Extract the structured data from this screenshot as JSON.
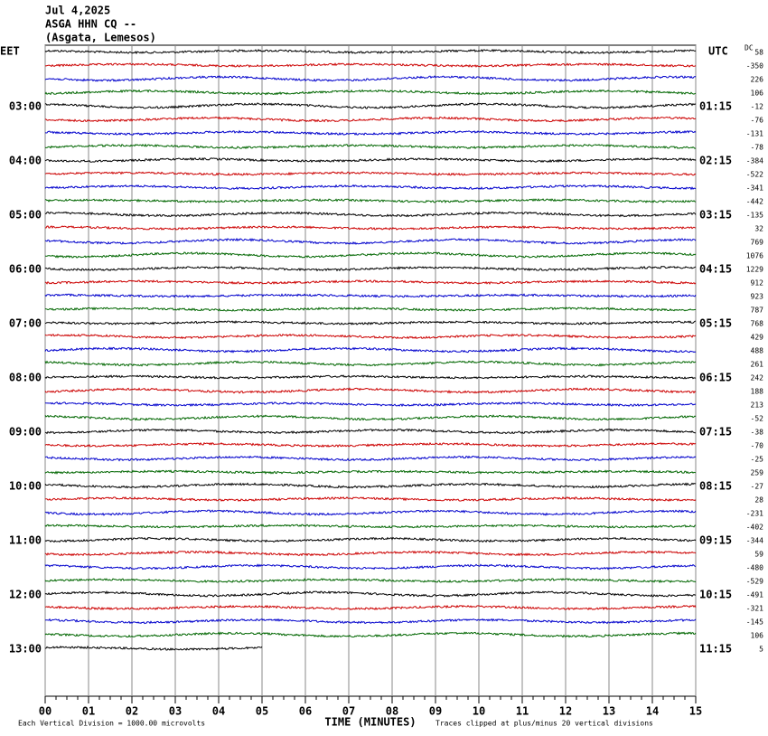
{
  "header": {
    "date": "Jul 4,2025",
    "station": "ASGA HHN CQ --",
    "location": "(Asgata, Lemesos)"
  },
  "chart_data": {
    "type": "helicorder",
    "left_axis_label": "EET",
    "right_axis_label": "UTC",
    "offset_label": "DC",
    "left_labels": [
      "03:00",
      "04:00",
      "05:00",
      "06:00",
      "07:00",
      "08:00",
      "09:00",
      "10:00",
      "11:00",
      "12:00",
      "13:00"
    ],
    "right_labels": [
      "01:15",
      "02:15",
      "03:15",
      "04:15",
      "05:15",
      "06:15",
      "07:15",
      "08:15",
      "09:15",
      "10:15",
      "11:15"
    ],
    "offsets": [
      58,
      -350,
      226,
      106,
      -12,
      -76,
      -131,
      -78,
      -384,
      -522,
      -341,
      -442,
      -135,
      32,
      769,
      1076,
      1229,
      912,
      923,
      787,
      768,
      429,
      488,
      261,
      242,
      188,
      213,
      -52,
      -38,
      -70,
      -25,
      259,
      -27,
      28,
      -231,
      -402,
      -344,
      59,
      -480,
      -529,
      -491,
      -321,
      -145,
      106,
      5
    ],
    "colors": [
      "#000000",
      "#cc0000",
      "#0000cc",
      "#006600"
    ],
    "xlabel": "TIME (MINUTES)",
    "xlim": [
      0,
      15
    ],
    "xticks": [
      {
        "value": 0,
        "label": "00"
      },
      {
        "value": 1,
        "label": "01"
      },
      {
        "value": 2,
        "label": "02"
      },
      {
        "value": 3,
        "label": "03"
      },
      {
        "value": 4,
        "label": "04"
      },
      {
        "value": 5,
        "label": "05"
      },
      {
        "value": 6,
        "label": "06"
      },
      {
        "value": 7,
        "label": "07"
      },
      {
        "value": 8,
        "label": "08"
      },
      {
        "value": 9,
        "label": "09"
      },
      10,
      11,
      12,
      13,
      14,
      15
    ],
    "last_trace_end": 5,
    "grid": true,
    "scale_note": "Each Vertical Division = 1000.00 microvolts",
    "clip_note": "Traces clipped at plus/minus 20 vertical divisions"
  }
}
